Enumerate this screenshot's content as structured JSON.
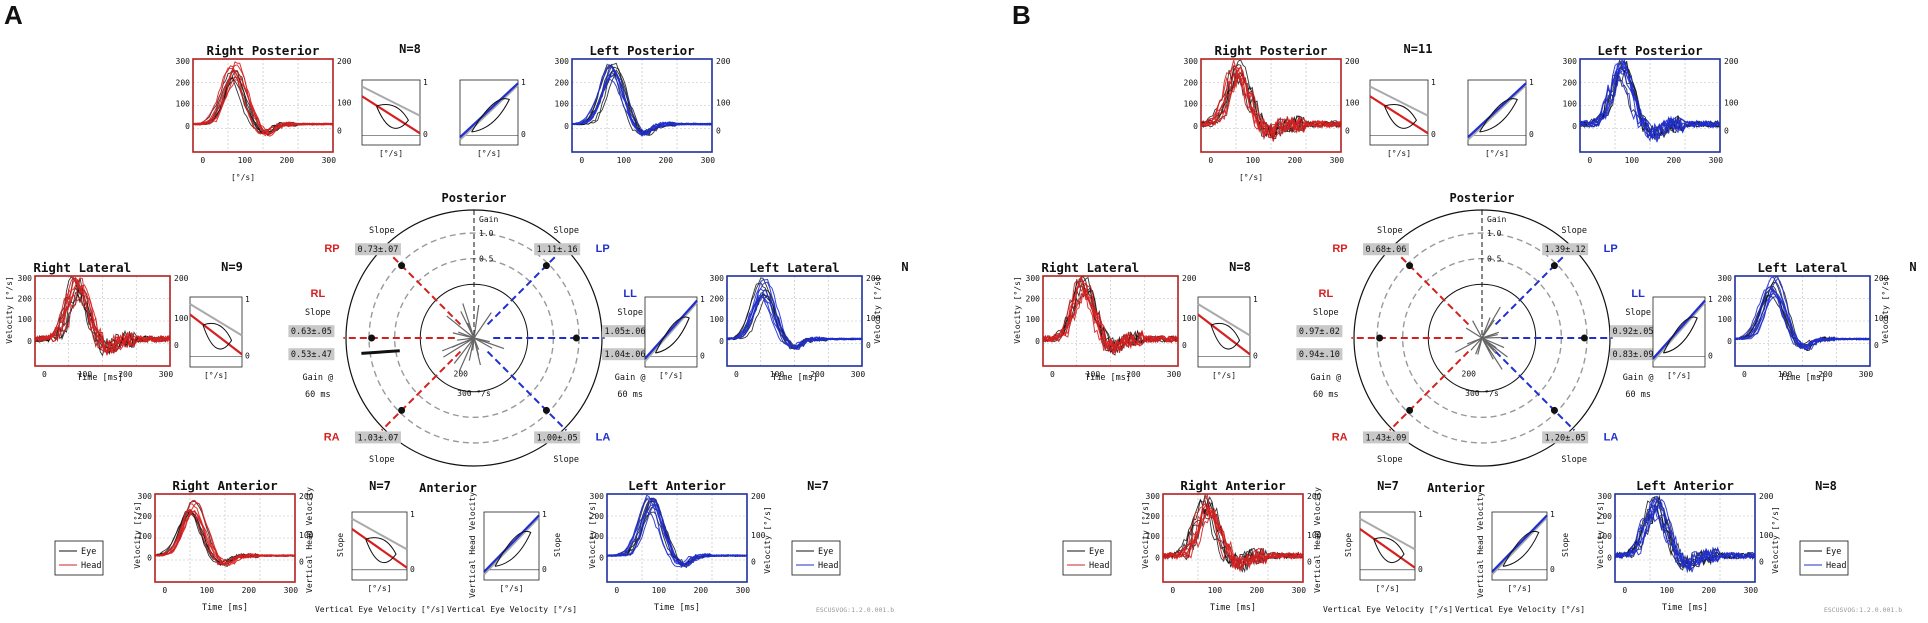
{
  "figure": {
    "panels": [
      {
        "letter": "A",
        "titles": {
          "rp": "Right Posterior",
          "lp": "Left Posterior",
          "rl": "Right Lateral",
          "ll": "Left Lateral",
          "ra": "Right Anterior",
          "la": "Left Anterior",
          "posterior": "Posterior",
          "anterior": "Anterior"
        },
        "n_labels": {
          "top": "N=8",
          "lateral_left": "N=9",
          "lateral_right": "N",
          "bottom_mid": "N=7",
          "bottom_right": "N=7"
        },
        "polar": {
          "canal_codes": {
            "rp": "RP",
            "lp": "LP",
            "rl": "RL",
            "ll": "LL",
            "ra": "RA",
            "la": "LA"
          },
          "slopes": {
            "rp": "0.73±.07",
            "lp": "1.11±.16",
            "rl_1": "0.63±.05",
            "rl_2": "0.53±.47",
            "ll_1": "1.05±.06",
            "ll_2": "1.04±.06",
            "ra": "1.03±.07",
            "la": "1.00±.05"
          },
          "slope_word": "Slope",
          "gain_word": "Gain",
          "gain_ticks": [
            "1.0",
            "0.5"
          ],
          "gain_at": "Gain @",
          "gain_ms": "60 ms",
          "center_ticks": [
            "200",
            "300 °/s"
          ]
        },
        "legend": {
          "eye": "Eye",
          "head": "Head"
        },
        "axes": {
          "time": "Time [ms]",
          "velocity": "Velocity [°/s]",
          "unit": "[°/s]",
          "slope": "Slope",
          "vert_eye": "Vertical Eye Velocity [°/s]",
          "vert_head": "Vertical Head Velocity",
          "head_unit": "[°/s]"
        },
        "ticks": {
          "v300": "300",
          "v200": "200",
          "v100": "100",
          "v0": "0",
          "t0": "0",
          "t100": "100",
          "t200": "200",
          "t300": "300",
          "s1": "1",
          "s0": "0"
        },
        "watermark": "ESCUSVOG:1.2.0.001.b"
      },
      {
        "letter": "B",
        "titles": {
          "rp": "Right Posterior",
          "lp": "Left Posterior",
          "rl": "Right Lateral",
          "ll": "Left Lateral",
          "ra": "Right Anterior",
          "la": "Left Anterior",
          "posterior": "Posterior",
          "anterior": "Anterior"
        },
        "n_labels": {
          "top": "N=11",
          "lateral_left": "N=8",
          "lateral_right": "N",
          "bottom_mid": "N=7",
          "bottom_right": "N=8"
        },
        "polar": {
          "canal_codes": {
            "rp": "RP",
            "lp": "LP",
            "rl": "RL",
            "ll": "LL",
            "ra": "RA",
            "la": "LA"
          },
          "slopes": {
            "rp": "0.68±.06",
            "lp": "1.39±.12",
            "rl_1": "0.97±.02",
            "rl_2": "0.94±.10",
            "ll_1": "0.92±.05",
            "ll_2": "0.83±.09",
            "ra": "1.43±.09",
            "la": "1.20±.05"
          },
          "slope_word": "Slope",
          "gain_word": "Gain",
          "gain_ticks": [
            "1.0",
            "0.5"
          ],
          "gain_at": "Gain @",
          "gain_ms": "60 ms",
          "center_ticks": [
            "200",
            "300 °/s"
          ]
        },
        "legend": {
          "eye": "Eye",
          "head": "Head"
        },
        "axes": {
          "time": "Time [ms]",
          "velocity": "Velocity [°/s]",
          "unit": "[°/s]",
          "slope": "Slope",
          "vert_eye": "Vertical Eye Velocity [°/s]",
          "vert_head": "Vertical Head Velocity",
          "head_unit": "[°/s]"
        },
        "ticks": {
          "v300": "300",
          "v200": "200",
          "v100": "100",
          "v0": "0",
          "t0": "0",
          "t100": "100",
          "t200": "200",
          "t300": "300",
          "s1": "1",
          "s0": "0"
        },
        "watermark": "ESCUSVOG:1.2.0.001.b"
      }
    ],
    "colors": {
      "right": "#d62020",
      "left": "#1f2fd0",
      "eye": "#111111",
      "frame_right": "#b22020",
      "frame_left": "#2030a0",
      "slope_box": "#c8c8c8"
    }
  }
}
